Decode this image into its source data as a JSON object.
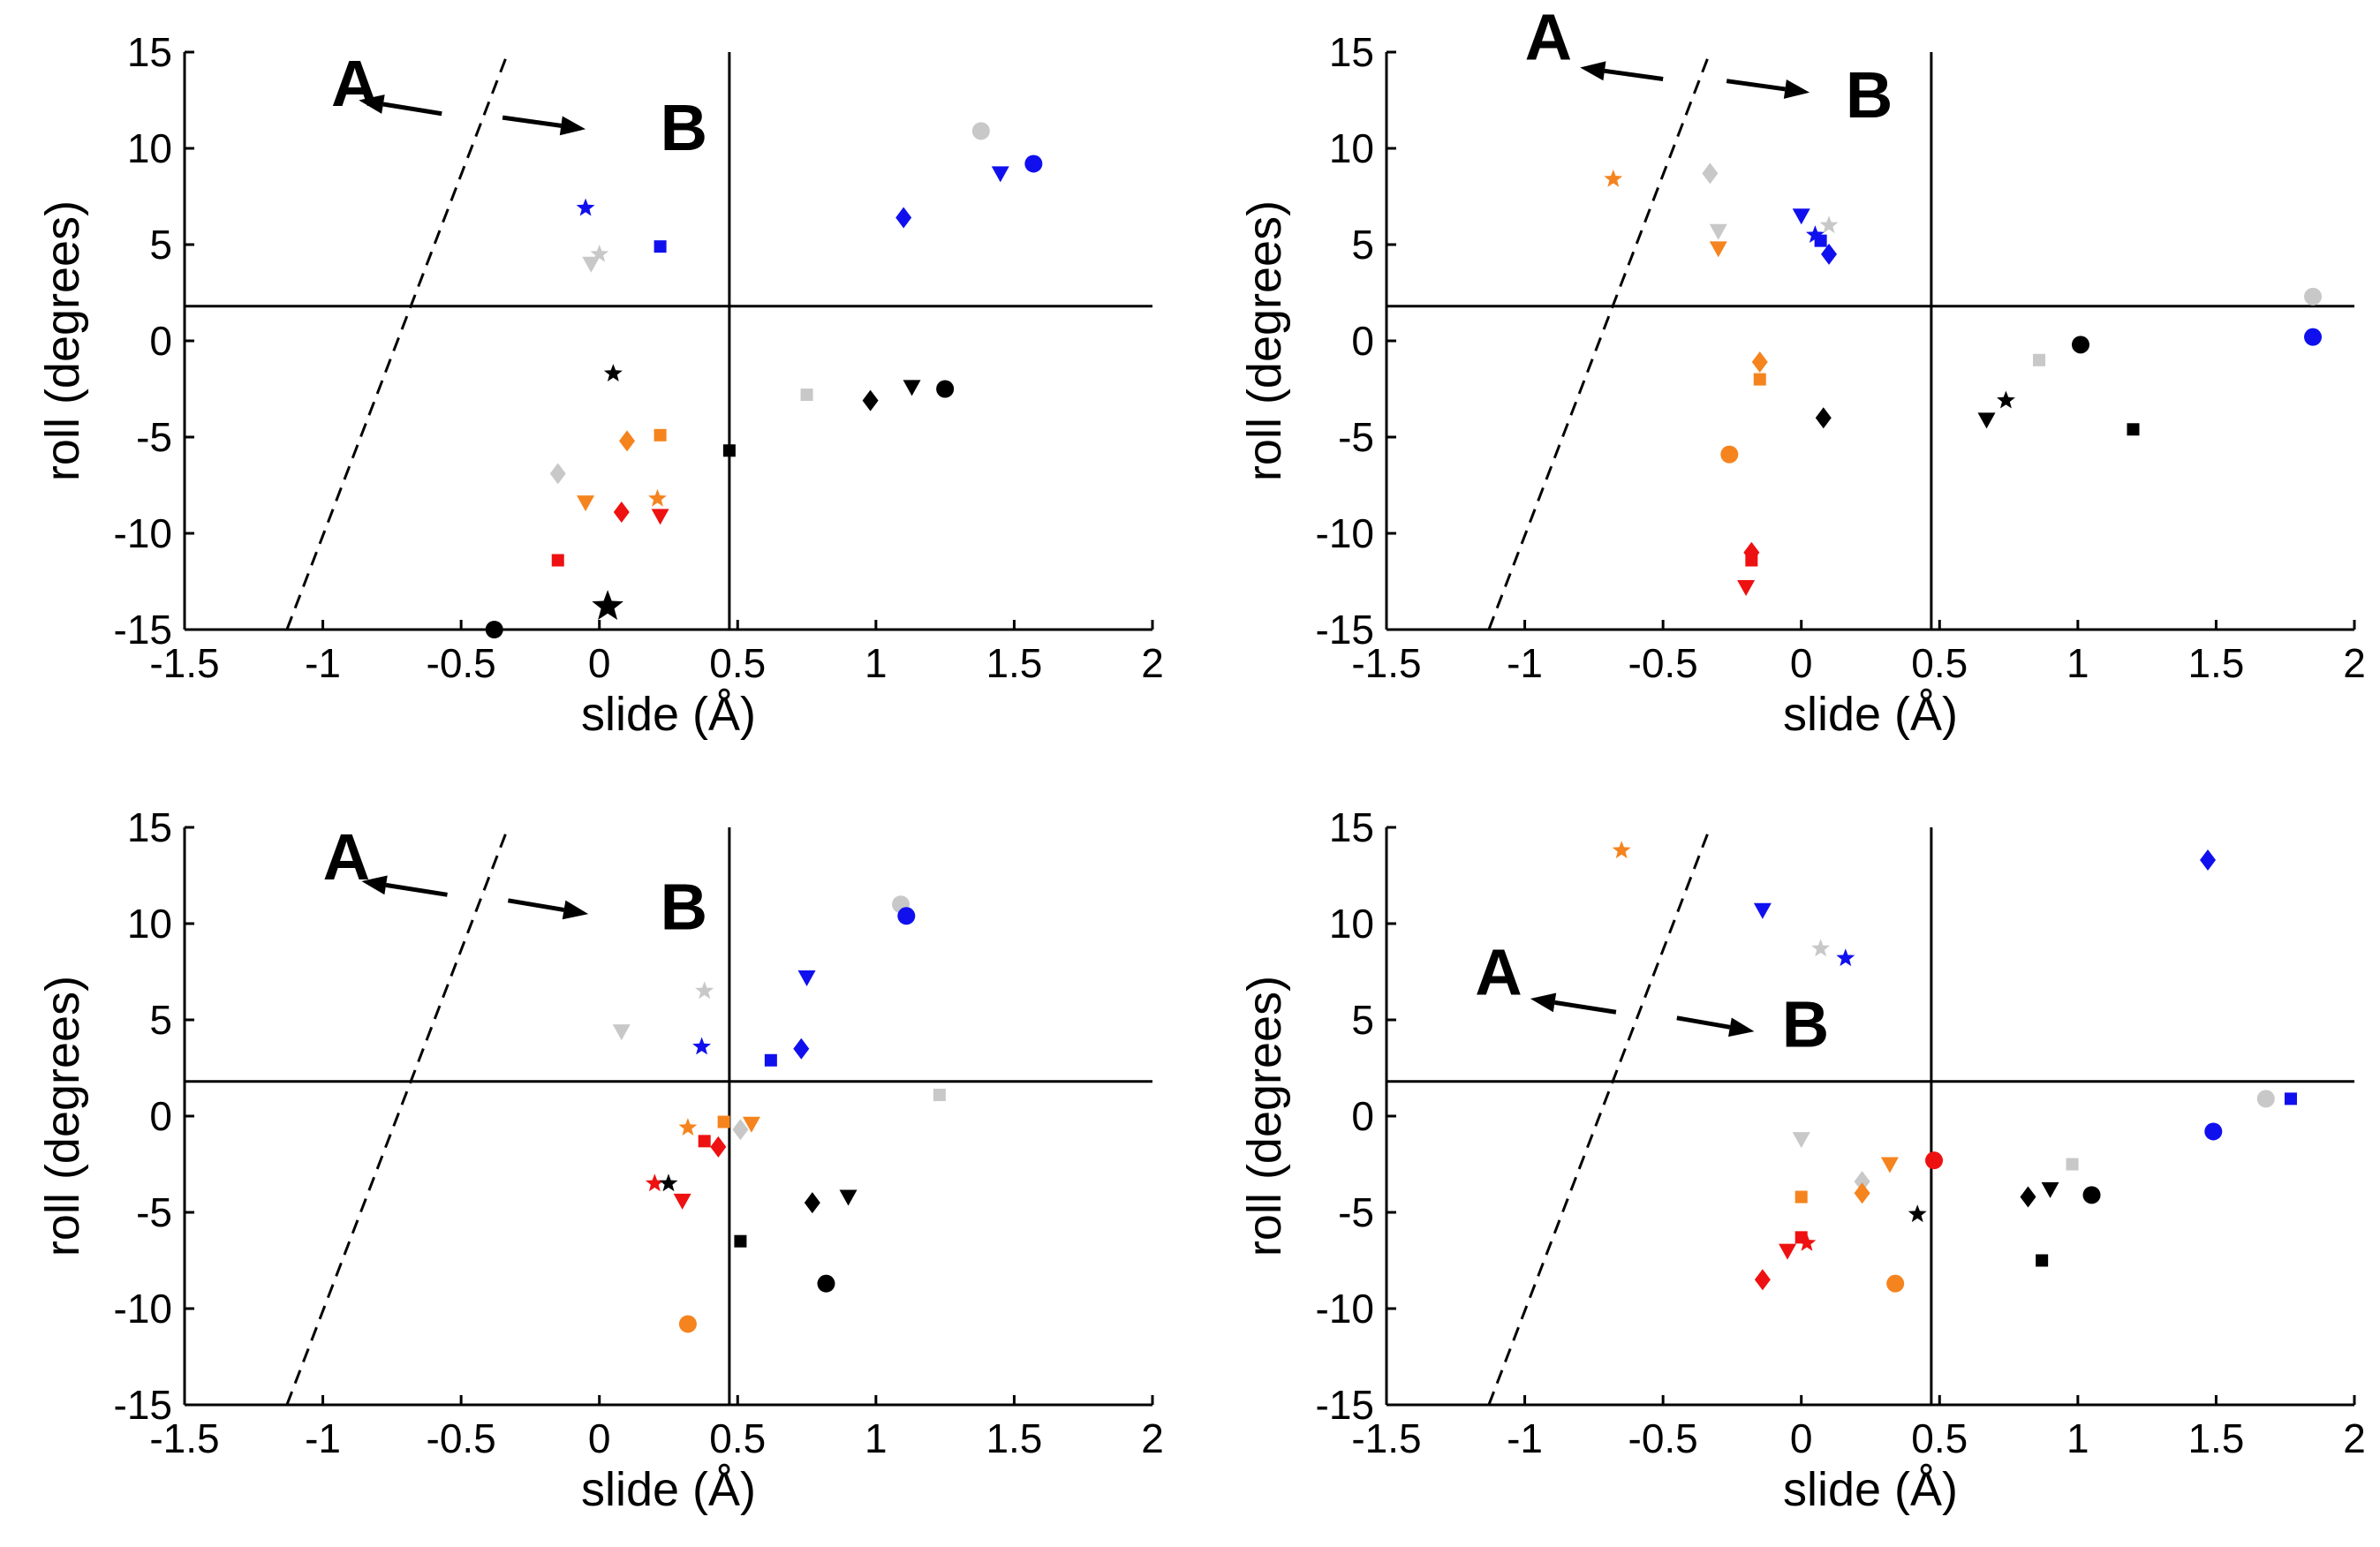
{
  "figure": {
    "panel_count": 4,
    "layout": "2x2 grid"
  },
  "colors": {
    "red": "#ee1111",
    "orange": "#f5841f",
    "gray": "#c8c8c8",
    "blue": "#1010ee",
    "black": "#000000"
  },
  "chart_data": [
    {
      "type": "scatter",
      "xlabel": "slide (Å)",
      "ylabel": "roll (degrees)",
      "xlim": [
        -1.5,
        2
      ],
      "ylim": [
        -15,
        15
      ],
      "xticks": [
        "-1.5",
        "-1",
        "-0.5",
        "0",
        "0.5",
        "1",
        "1.5",
        "2"
      ],
      "yticks": [
        "15",
        "10",
        "5",
        "0",
        "-5",
        "-10",
        "-15"
      ],
      "hline": 1.8,
      "vline": 0.47,
      "dashed_line": [
        [
          -1.13,
          -15
        ],
        [
          -0.33,
          15
        ]
      ],
      "annotation": {
        "label_a": "A",
        "label_b": "B",
        "a_at": [
          -0.97,
          12.2
        ],
        "b_at": [
          0.22,
          9.9
        ],
        "tip_a": [
          -0.87,
          12.5
        ],
        "tail_a": [
          -0.57,
          11.8
        ],
        "tail_b": [
          -0.35,
          11.6
        ],
        "tip_b": [
          -0.05,
          11.0
        ]
      },
      "points": [
        {
          "x": -0.05,
          "y": 6.9,
          "m": "star",
          "c": "blue"
        },
        {
          "x": 0.22,
          "y": 4.9,
          "m": "square",
          "c": "blue"
        },
        {
          "x": 1.1,
          "y": 6.4,
          "m": "diamond",
          "c": "blue"
        },
        {
          "x": 1.45,
          "y": 8.7,
          "m": "triangle",
          "c": "blue"
        },
        {
          "x": 1.57,
          "y": 9.2,
          "m": "circle",
          "c": "blue"
        },
        {
          "x": 0.0,
          "y": 4.5,
          "m": "star",
          "c": "gray"
        },
        {
          "x": -0.03,
          "y": 4.0,
          "m": "triangle",
          "c": "gray"
        },
        {
          "x": 1.38,
          "y": 10.9,
          "m": "circle",
          "c": "gray"
        },
        {
          "x": 0.75,
          "y": -2.8,
          "m": "square",
          "c": "gray"
        },
        {
          "x": -0.15,
          "y": -6.9,
          "m": "diamond",
          "c": "gray"
        },
        {
          "x": 0.05,
          "y": -1.7,
          "m": "star",
          "c": "black"
        },
        {
          "x": 0.03,
          "y": -13.8,
          "m": "star",
          "c": "black",
          "big": true
        },
        {
          "x": -0.38,
          "y": -15.0,
          "m": "circle",
          "c": "black"
        },
        {
          "x": 0.47,
          "y": -5.7,
          "m": "square",
          "c": "black"
        },
        {
          "x": 0.98,
          "y": -3.1,
          "m": "diamond",
          "c": "black"
        },
        {
          "x": 1.13,
          "y": -2.4,
          "m": "triangle",
          "c": "black"
        },
        {
          "x": 1.25,
          "y": -2.5,
          "m": "circle",
          "c": "black"
        },
        {
          "x": 0.1,
          "y": -5.2,
          "m": "diamond",
          "c": "orange"
        },
        {
          "x": 0.22,
          "y": -4.9,
          "m": "square",
          "c": "orange"
        },
        {
          "x": -0.05,
          "y": -8.4,
          "m": "triangle",
          "c": "orange"
        },
        {
          "x": 0.21,
          "y": -8.2,
          "m": "star",
          "c": "orange"
        },
        {
          "x": -0.15,
          "y": -11.4,
          "m": "square",
          "c": "red"
        },
        {
          "x": 0.08,
          "y": -8.9,
          "m": "diamond",
          "c": "red"
        },
        {
          "x": 0.22,
          "y": -9.1,
          "m": "triangle",
          "c": "red"
        }
      ]
    },
    {
      "type": "scatter",
      "xlabel": "slide (Å)",
      "ylabel": "roll (degrees)",
      "xlim": [
        -1.5,
        2
      ],
      "ylim": [
        -15,
        15
      ],
      "xticks": [
        "-1.5",
        "-1",
        "-0.5",
        "0",
        "0.5",
        "1",
        "1.5",
        "2"
      ],
      "yticks": [
        "15",
        "10",
        "5",
        "0",
        "-5",
        "-10",
        "-15"
      ],
      "hline": 1.8,
      "vline": 0.47,
      "dashed_line": [
        [
          -1.13,
          -15
        ],
        [
          -0.33,
          15
        ]
      ],
      "annotation": {
        "label_a": "A",
        "label_b": "B",
        "a_at": [
          -1.0,
          14.6
        ],
        "b_at": [
          0.16,
          11.6
        ],
        "tip_a": [
          -0.8,
          14.2
        ],
        "tail_a": [
          -0.5,
          13.6
        ],
        "tail_b": [
          -0.27,
          13.5
        ],
        "tip_b": [
          0.03,
          12.9
        ]
      },
      "points": [
        {
          "x": -0.68,
          "y": 8.4,
          "m": "star",
          "c": "orange"
        },
        {
          "x": -0.33,
          "y": 8.7,
          "m": "diamond",
          "c": "gray"
        },
        {
          "x": -0.3,
          "y": 5.7,
          "m": "triangle",
          "c": "gray"
        },
        {
          "x": -0.3,
          "y": 4.8,
          "m": "triangle",
          "c": "orange"
        },
        {
          "x": 0.0,
          "y": 6.5,
          "m": "triangle",
          "c": "blue"
        },
        {
          "x": 0.1,
          "y": 6.0,
          "m": "star",
          "c": "gray"
        },
        {
          "x": 0.05,
          "y": 5.5,
          "m": "star",
          "c": "blue"
        },
        {
          "x": 0.07,
          "y": 5.2,
          "m": "square",
          "c": "blue"
        },
        {
          "x": 0.1,
          "y": 4.5,
          "m": "diamond",
          "c": "blue"
        },
        {
          "x": -0.15,
          "y": -1.1,
          "m": "diamond",
          "c": "orange"
        },
        {
          "x": -0.15,
          "y": -2.0,
          "m": "square",
          "c": "orange"
        },
        {
          "x": 0.08,
          "y": -4.0,
          "m": "diamond",
          "c": "black"
        },
        {
          "x": -0.26,
          "y": -5.9,
          "m": "circle",
          "c": "orange"
        },
        {
          "x": -0.18,
          "y": -11.0,
          "m": "diamond",
          "c": "red"
        },
        {
          "x": -0.18,
          "y": -11.4,
          "m": "square",
          "c": "red"
        },
        {
          "x": -0.2,
          "y": -12.8,
          "m": "triangle",
          "c": "red"
        },
        {
          "x": 0.67,
          "y": -4.1,
          "m": "triangle",
          "c": "black"
        },
        {
          "x": 0.74,
          "y": -3.1,
          "m": "star",
          "c": "black"
        },
        {
          "x": 0.86,
          "y": -1.0,
          "m": "square",
          "c": "gray"
        },
        {
          "x": 1.01,
          "y": -0.2,
          "m": "circle",
          "c": "black"
        },
        {
          "x": 1.2,
          "y": -4.6,
          "m": "square",
          "c": "black"
        },
        {
          "x": 1.85,
          "y": 2.3,
          "m": "circle",
          "c": "gray"
        },
        {
          "x": 1.85,
          "y": 0.2,
          "m": "circle",
          "c": "blue"
        }
      ]
    },
    {
      "type": "scatter",
      "xlabel": "slide (Å)",
      "ylabel": "roll (degrees)",
      "xlim": [
        -1.5,
        2
      ],
      "ylim": [
        -15,
        15
      ],
      "xticks": [
        "-1.5",
        "-1",
        "-0.5",
        "0",
        "0.5",
        "1",
        "1.5",
        "2"
      ],
      "yticks": [
        "15",
        "10",
        "5",
        "0",
        "-5",
        "-10",
        "-15"
      ],
      "hline": 1.8,
      "vline": 0.47,
      "dashed_line": [
        [
          -1.13,
          -15
        ],
        [
          -0.33,
          15
        ]
      ],
      "annotation": {
        "label_a": "A",
        "label_b": "B",
        "a_at": [
          -1.0,
          12.3
        ],
        "b_at": [
          0.22,
          9.7
        ],
        "tip_a": [
          -0.86,
          12.2
        ],
        "tail_a": [
          -0.55,
          11.5
        ],
        "tail_b": [
          -0.33,
          11.2
        ],
        "tip_b": [
          -0.04,
          10.5
        ]
      },
      "points": [
        {
          "x": 0.08,
          "y": 4.4,
          "m": "triangle",
          "c": "gray"
        },
        {
          "x": 0.38,
          "y": 6.5,
          "m": "star",
          "c": "gray"
        },
        {
          "x": 0.37,
          "y": 3.6,
          "m": "star",
          "c": "blue"
        },
        {
          "x": 0.62,
          "y": 2.9,
          "m": "square",
          "c": "blue"
        },
        {
          "x": 0.75,
          "y": 7.2,
          "m": "triangle",
          "c": "blue"
        },
        {
          "x": 0.73,
          "y": 3.5,
          "m": "diamond",
          "c": "blue"
        },
        {
          "x": 1.09,
          "y": 11.0,
          "m": "circle",
          "c": "gray"
        },
        {
          "x": 1.11,
          "y": 10.4,
          "m": "circle",
          "c": "blue"
        },
        {
          "x": 1.23,
          "y": 1.1,
          "m": "square",
          "c": "gray"
        },
        {
          "x": 0.32,
          "y": -0.6,
          "m": "star",
          "c": "orange"
        },
        {
          "x": 0.45,
          "y": -0.3,
          "m": "square",
          "c": "orange"
        },
        {
          "x": 0.51,
          "y": -0.7,
          "m": "diamond",
          "c": "gray"
        },
        {
          "x": 0.55,
          "y": -0.4,
          "m": "triangle",
          "c": "orange"
        },
        {
          "x": 0.38,
          "y": -1.3,
          "m": "square",
          "c": "red"
        },
        {
          "x": 0.43,
          "y": -1.6,
          "m": "diamond",
          "c": "red"
        },
        {
          "x": 0.2,
          "y": -3.5,
          "m": "star",
          "c": "red"
        },
        {
          "x": 0.25,
          "y": -3.5,
          "m": "star",
          "c": "black"
        },
        {
          "x": 0.3,
          "y": -4.4,
          "m": "triangle",
          "c": "red"
        },
        {
          "x": 0.51,
          "y": -6.5,
          "m": "square",
          "c": "black"
        },
        {
          "x": 0.77,
          "y": -4.5,
          "m": "diamond",
          "c": "black"
        },
        {
          "x": 0.9,
          "y": -4.2,
          "m": "triangle",
          "c": "black"
        },
        {
          "x": 0.82,
          "y": -8.7,
          "m": "circle",
          "c": "black"
        },
        {
          "x": 0.32,
          "y": -10.8,
          "m": "circle",
          "c": "orange"
        }
      ]
    },
    {
      "type": "scatter",
      "xlabel": "slide (Å)",
      "ylabel": "roll (degrees)",
      "xlim": [
        -1.5,
        2
      ],
      "ylim": [
        -15,
        15
      ],
      "xticks": [
        "-1.5",
        "-1",
        "-0.5",
        "0",
        "0.5",
        "1",
        "1.5",
        "2"
      ],
      "yticks": [
        "15",
        "10",
        "5",
        "0",
        "-5",
        "-10",
        "-15"
      ],
      "hline": 1.8,
      "vline": 0.47,
      "dashed_line": [
        [
          -1.13,
          -15
        ],
        [
          -0.33,
          15
        ]
      ],
      "annotation": {
        "label_a": "A",
        "label_b": "B",
        "a_at": [
          -1.18,
          6.3
        ],
        "b_at": [
          -0.07,
          3.6
        ],
        "tip_a": [
          -0.98,
          6.1
        ],
        "tail_a": [
          -0.67,
          5.4
        ],
        "tail_b": [
          -0.45,
          5.1
        ],
        "tip_b": [
          -0.17,
          4.4
        ]
      },
      "points": [
        {
          "x": -0.65,
          "y": 13.8,
          "m": "star",
          "c": "orange"
        },
        {
          "x": -0.14,
          "y": 10.7,
          "m": "triangle",
          "c": "blue"
        },
        {
          "x": 0.07,
          "y": 8.7,
          "m": "star",
          "c": "gray"
        },
        {
          "x": 0.16,
          "y": 8.2,
          "m": "star",
          "c": "blue"
        },
        {
          "x": 1.47,
          "y": 13.3,
          "m": "diamond",
          "c": "blue"
        },
        {
          "x": 1.68,
          "y": 0.9,
          "m": "circle",
          "c": "gray"
        },
        {
          "x": 1.77,
          "y": 0.9,
          "m": "square",
          "c": "blue"
        },
        {
          "x": 1.49,
          "y": -0.8,
          "m": "circle",
          "c": "blue"
        },
        {
          "x": 0.0,
          "y": -1.2,
          "m": "triangle",
          "c": "gray"
        },
        {
          "x": 0.0,
          "y": -4.2,
          "m": "square",
          "c": "orange"
        },
        {
          "x": 0.22,
          "y": -3.4,
          "m": "diamond",
          "c": "gray"
        },
        {
          "x": 0.22,
          "y": -4.0,
          "m": "diamond",
          "c": "orange"
        },
        {
          "x": 0.32,
          "y": -2.5,
          "m": "triangle",
          "c": "orange"
        },
        {
          "x": 0.48,
          "y": -2.3,
          "m": "circle",
          "c": "red"
        },
        {
          "x": 0.42,
          "y": -5.1,
          "m": "star",
          "c": "black"
        },
        {
          "x": 0.0,
          "y": -6.3,
          "m": "square",
          "c": "red"
        },
        {
          "x": 0.02,
          "y": -6.6,
          "m": "star",
          "c": "red"
        },
        {
          "x": -0.05,
          "y": -7.0,
          "m": "triangle",
          "c": "red"
        },
        {
          "x": -0.14,
          "y": -8.5,
          "m": "diamond",
          "c": "red"
        },
        {
          "x": 0.34,
          "y": -8.7,
          "m": "circle",
          "c": "orange"
        },
        {
          "x": 0.82,
          "y": -4.2,
          "m": "diamond",
          "c": "black"
        },
        {
          "x": 0.9,
          "y": -3.8,
          "m": "triangle",
          "c": "black"
        },
        {
          "x": 0.98,
          "y": -2.5,
          "m": "square",
          "c": "gray"
        },
        {
          "x": 1.05,
          "y": -4.1,
          "m": "circle",
          "c": "black"
        },
        {
          "x": 0.87,
          "y": -7.5,
          "m": "square",
          "c": "black"
        }
      ]
    }
  ]
}
